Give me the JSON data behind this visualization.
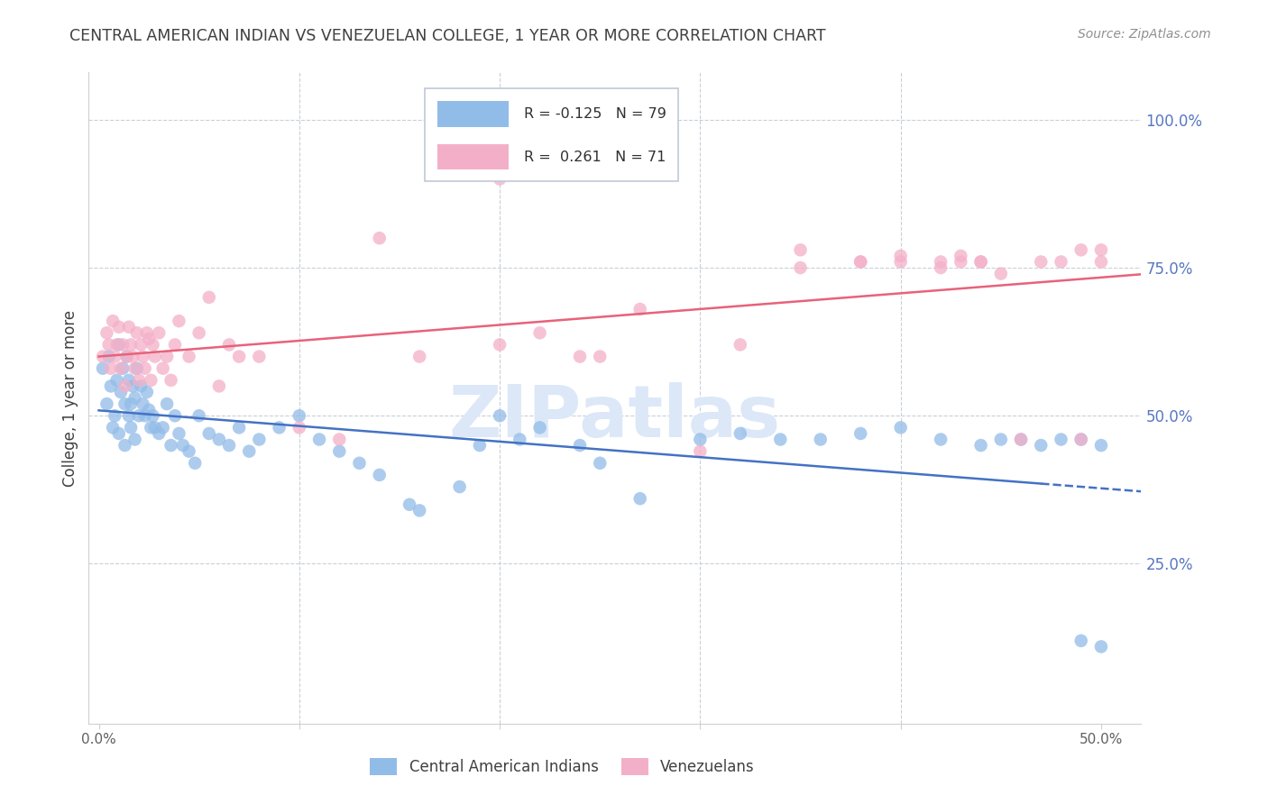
{
  "title": "CENTRAL AMERICAN INDIAN VS VENEZUELAN COLLEGE, 1 YEAR OR MORE CORRELATION CHART",
  "source": "Source: ZipAtlas.com",
  "xlabel_ticks": [
    "0.0%",
    "",
    "",
    "",
    "",
    "50.0%"
  ],
  "xlabel_vals": [
    0.0,
    0.1,
    0.2,
    0.3,
    0.4,
    0.5
  ],
  "ylabel_label": "College, 1 year or more",
  "ylabel_ticks_right": [
    "100.0%",
    "75.0%",
    "50.0%",
    "25.0%"
  ],
  "ylabel_vals_right": [
    1.0,
    0.75,
    0.5,
    0.25
  ],
  "xlim": [
    -0.005,
    0.52
  ],
  "ylim": [
    -0.02,
    1.08
  ],
  "blue_R": -0.125,
  "blue_N": 79,
  "pink_R": 0.261,
  "pink_N": 71,
  "blue_color": "#92bce8",
  "pink_color": "#f4afc8",
  "blue_line_color": "#4472c4",
  "pink_line_color": "#e8627a",
  "watermark": "ZIPatlas",
  "watermark_color": "#dce8f8",
  "grid_color": "#c8d0d8",
  "title_color": "#404040",
  "right_label_color": "#5878c0",
  "blue_scatter_x": [
    0.002,
    0.004,
    0.005,
    0.006,
    0.007,
    0.008,
    0.009,
    0.01,
    0.01,
    0.011,
    0.012,
    0.013,
    0.013,
    0.014,
    0.015,
    0.015,
    0.016,
    0.016,
    0.017,
    0.018,
    0.018,
    0.019,
    0.02,
    0.021,
    0.022,
    0.023,
    0.024,
    0.025,
    0.026,
    0.027,
    0.028,
    0.03,
    0.032,
    0.034,
    0.036,
    0.038,
    0.04,
    0.042,
    0.045,
    0.048,
    0.05,
    0.055,
    0.06,
    0.065,
    0.07,
    0.075,
    0.08,
    0.09,
    0.1,
    0.11,
    0.12,
    0.13,
    0.14,
    0.155,
    0.16,
    0.18,
    0.19,
    0.2,
    0.21,
    0.22,
    0.24,
    0.25,
    0.27,
    0.3,
    0.32,
    0.34,
    0.36,
    0.38,
    0.4,
    0.42,
    0.44,
    0.45,
    0.46,
    0.47,
    0.48,
    0.49,
    0.5,
    0.5,
    0.49
  ],
  "blue_scatter_y": [
    0.58,
    0.52,
    0.6,
    0.55,
    0.48,
    0.5,
    0.56,
    0.62,
    0.47,
    0.54,
    0.58,
    0.52,
    0.45,
    0.6,
    0.56,
    0.5,
    0.52,
    0.48,
    0.55,
    0.53,
    0.46,
    0.58,
    0.5,
    0.55,
    0.52,
    0.5,
    0.54,
    0.51,
    0.48,
    0.5,
    0.48,
    0.47,
    0.48,
    0.52,
    0.45,
    0.5,
    0.47,
    0.45,
    0.44,
    0.42,
    0.5,
    0.47,
    0.46,
    0.45,
    0.48,
    0.44,
    0.46,
    0.48,
    0.5,
    0.46,
    0.44,
    0.42,
    0.4,
    0.35,
    0.34,
    0.38,
    0.45,
    0.5,
    0.46,
    0.48,
    0.45,
    0.42,
    0.36,
    0.46,
    0.47,
    0.46,
    0.46,
    0.47,
    0.48,
    0.46,
    0.45,
    0.46,
    0.46,
    0.45,
    0.46,
    0.12,
    0.11,
    0.45,
    0.46
  ],
  "pink_scatter_x": [
    0.002,
    0.004,
    0.005,
    0.006,
    0.007,
    0.008,
    0.009,
    0.01,
    0.011,
    0.012,
    0.013,
    0.014,
    0.015,
    0.016,
    0.017,
    0.018,
    0.019,
    0.02,
    0.021,
    0.022,
    0.023,
    0.024,
    0.025,
    0.026,
    0.027,
    0.028,
    0.03,
    0.032,
    0.034,
    0.036,
    0.038,
    0.04,
    0.045,
    0.05,
    0.055,
    0.06,
    0.065,
    0.07,
    0.08,
    0.1,
    0.12,
    0.14,
    0.16,
    0.2,
    0.22,
    0.25,
    0.27,
    0.3,
    0.32,
    0.35,
    0.38,
    0.4,
    0.42,
    0.43,
    0.44,
    0.45,
    0.46,
    0.47,
    0.48,
    0.49,
    0.49,
    0.5,
    0.5,
    0.44,
    0.43,
    0.42,
    0.4,
    0.38,
    0.35,
    0.2,
    0.24
  ],
  "pink_scatter_y": [
    0.6,
    0.64,
    0.62,
    0.58,
    0.66,
    0.6,
    0.62,
    0.65,
    0.58,
    0.62,
    0.55,
    0.6,
    0.65,
    0.62,
    0.6,
    0.58,
    0.64,
    0.56,
    0.62,
    0.6,
    0.58,
    0.64,
    0.63,
    0.56,
    0.62,
    0.6,
    0.64,
    0.58,
    0.6,
    0.56,
    0.62,
    0.66,
    0.6,
    0.64,
    0.7,
    0.55,
    0.62,
    0.6,
    0.6,
    0.48,
    0.46,
    0.8,
    0.6,
    0.62,
    0.64,
    0.6,
    0.68,
    0.44,
    0.62,
    0.78,
    0.76,
    0.76,
    0.75,
    0.76,
    0.76,
    0.74,
    0.46,
    0.76,
    0.76,
    0.78,
    0.46,
    0.78,
    0.76,
    0.76,
    0.77,
    0.76,
    0.77,
    0.76,
    0.75,
    0.9,
    0.6
  ]
}
